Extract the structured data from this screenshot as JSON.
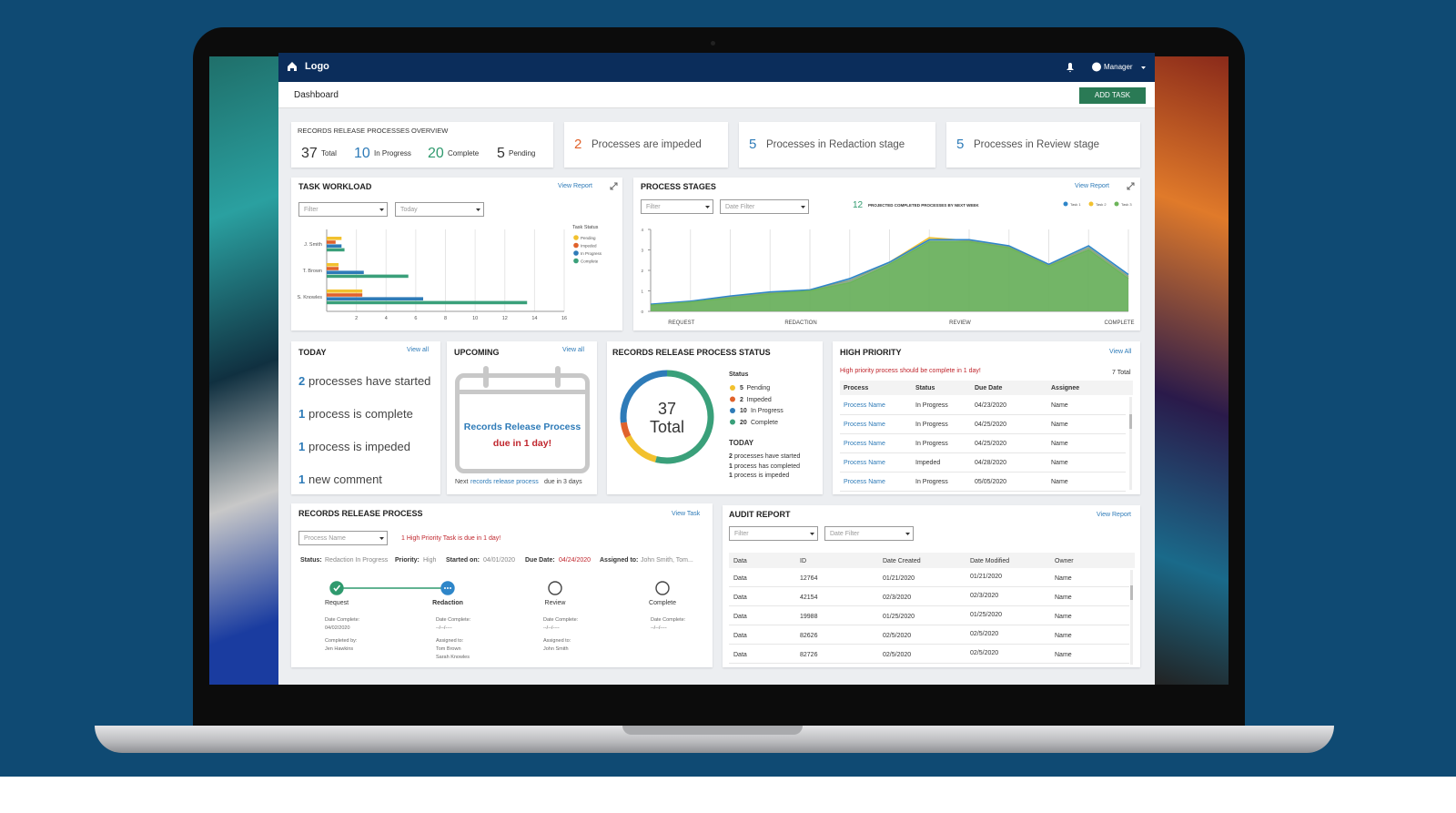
{
  "nav": {
    "logo": "Logo",
    "user": "Manager"
  },
  "header": {
    "title": "Dashboard",
    "button": "ADD TASK"
  },
  "overview": {
    "title": "RECORDS RELEASE PROCESSES OVERVIEW",
    "stats": [
      {
        "value": 37,
        "label": "Total",
        "color": "#333333"
      },
      {
        "value": 10,
        "label": "In Progress",
        "color": "#2e7bb8"
      },
      {
        "value": 20,
        "label": "Complete",
        "color": "#2f9a6e"
      },
      {
        "value": 5,
        "label": "Pending",
        "color": "#333333"
      }
    ]
  },
  "summary_cards": [
    {
      "value": 2,
      "label": "Processes are impeded",
      "color": "#e0622b"
    },
    {
      "value": 5,
      "label": "Processes in Redaction stage",
      "color": "#2e7bb8"
    },
    {
      "value": 5,
      "label": "Processes in Review stage",
      "color": "#2e7bb8"
    }
  ],
  "task_workload": {
    "title": "TASK WORKLOAD",
    "link": "View Report",
    "filters": [
      "Filter",
      "Today"
    ],
    "chart": {
      "type": "bar",
      "orientation": "horizontal",
      "legend_title": "Task Status",
      "categories": [
        "J. Smith",
        "T. Brown",
        "S. Knowles"
      ],
      "series": [
        {
          "name": "Pending",
          "color": "#f2c12e",
          "values": [
            1,
            0.8,
            2.4
          ]
        },
        {
          "name": "Impeded",
          "color": "#e0622b",
          "values": [
            0.6,
            0.8,
            2.4
          ]
        },
        {
          "name": "In Progress",
          "color": "#2e7bb8",
          "values": [
            1,
            2.5,
            6.5
          ]
        },
        {
          "name": "Complete",
          "color": "#3aa07a",
          "values": [
            1.2,
            5.5,
            13.5
          ]
        }
      ],
      "xlim": [
        0,
        16
      ],
      "xticks": [
        2,
        4,
        6,
        8,
        10,
        12,
        14,
        16
      ],
      "grid": true
    }
  },
  "process_stages": {
    "title": "PROCESS STAGES",
    "link": "View Report",
    "filters": [
      "Filter",
      "Date Filter"
    ],
    "projection": {
      "value": 12,
      "label": "PROJECTED COMPLETED PROCESSES BY NEXT WEEK"
    },
    "chart": {
      "type": "area",
      "categories": [
        null,
        "REQUEST",
        null,
        null,
        "REDACTION",
        null,
        null,
        null,
        "REVIEW",
        null,
        null,
        null,
        "COMPLETE"
      ],
      "series": [
        {
          "name": "Task 1",
          "color": "#2e86c9",
          "values": [
            0.35,
            0.5,
            0.75,
            0.95,
            1.05,
            1.6,
            2.4,
            3.5,
            3.5,
            3.2,
            2.3,
            3.2,
            1.8
          ]
        },
        {
          "name": "Task 2",
          "color": "#f2c12e",
          "values": [
            0.3,
            0.45,
            0.7,
            0.9,
            1.05,
            1.5,
            2.4,
            3.6,
            3.45,
            3.15,
            2.25,
            3.1,
            1.7
          ]
        },
        {
          "name": "Task 3",
          "color": "#6db55a",
          "values": [
            0.3,
            0.45,
            0.65,
            0.85,
            1.0,
            1.4,
            2.3,
            3.4,
            3.4,
            3.1,
            2.2,
            3.0,
            1.6
          ]
        }
      ],
      "ylim": [
        0,
        4
      ],
      "yticks": [
        0,
        1,
        2,
        3,
        4
      ],
      "grid": true
    }
  },
  "today": {
    "title": "TODAY",
    "link": "View all",
    "items": [
      {
        "count": 2,
        "text": "processes have started"
      },
      {
        "count": 1,
        "text": "process is complete"
      },
      {
        "count": 1,
        "text": "process is impeded"
      },
      {
        "count": 1,
        "text": "new comment"
      }
    ]
  },
  "upcoming": {
    "title": "UPCOMING",
    "link": "View all",
    "message": "Records Release Process",
    "due": "due in 1 day!",
    "footer": {
      "prefix": "Next",
      "link": "records release process",
      "suffix": "due in 3 days"
    }
  },
  "status": {
    "title": "RECORDS RELEASE PROCESS STATUS",
    "type": "donut",
    "total": 37,
    "total_label": "Total",
    "legend_title": "Status",
    "items": [
      {
        "value": 5,
        "label": "Pending",
        "color": "#f2c12e"
      },
      {
        "value": 2,
        "label": "Impeded",
        "color": "#e0622b"
      },
      {
        "value": 10,
        "label": "In Progress",
        "color": "#2e7bb8"
      },
      {
        "value": 20,
        "label": "Complete",
        "color": "#3aa07a"
      }
    ],
    "today_title": "TODAY",
    "today": [
      {
        "count": 2,
        "text": "processes have started"
      },
      {
        "count": 1,
        "text": "process has completed"
      },
      {
        "count": 1,
        "text": "process is impeded"
      }
    ]
  },
  "high_priority": {
    "title": "HIGH PRIORITY",
    "link": "View All",
    "alert": "High priority process should be complete in 1 day!",
    "total": "7 Total",
    "columns": [
      "Process",
      "Status",
      "Due Date",
      "Assignee"
    ],
    "rows": [
      [
        "Process Name",
        "In Progress",
        "04/23/2020",
        "Name"
      ],
      [
        "Process Name",
        "In Progress",
        "04/25/2020",
        "Name"
      ],
      [
        "Process Name",
        "In Progress",
        "04/25/2020",
        "Name"
      ],
      [
        "Process Name",
        "Impeded",
        "04/28/2020",
        "Name"
      ],
      [
        "Process Name",
        "In Progress",
        "05/05/2020",
        "Name"
      ]
    ]
  },
  "records_process": {
    "title": "RECORDS RELEASE PROCESS",
    "link": "View Task",
    "select": "Process Name",
    "alert": "1 High Priority Task is due in 1 day!",
    "meta": [
      {
        "label": "Status:",
        "value": "Redaction In Progress"
      },
      {
        "label": "Priority:",
        "value": "High"
      },
      {
        "label": "Started on:",
        "value": "04/01/2020"
      },
      {
        "label": "Due Date:",
        "value": "04/24/2020"
      },
      {
        "label": "Assigned to:",
        "value": "John Smith, Tom..."
      }
    ],
    "steps": [
      {
        "label": "Request",
        "state": "complete",
        "details": [
          "Date Complete:",
          "04/02/2020",
          "Completed by:",
          "Jen Hawkins"
        ]
      },
      {
        "label": "Redaction",
        "state": "current",
        "details": [
          "Date Complete:",
          "--/--/----",
          "Assigned to:",
          "Tom Brown",
          "Sarah Knowles"
        ]
      },
      {
        "label": "Review",
        "state": "pending",
        "details": [
          "Date Complete:",
          "--/--/----",
          "Assigned to:",
          "John Smith"
        ]
      },
      {
        "label": "Complete",
        "state": "pending",
        "details": [
          "Date Complete:",
          "--/--/----"
        ]
      }
    ]
  },
  "audit_report": {
    "title": "AUDIT REPORT",
    "link": "View Report",
    "filters": [
      "Filter",
      "Date Filter"
    ],
    "columns": [
      "Data",
      "ID",
      "Date Created",
      "Date Modified",
      "Owner"
    ],
    "rows": [
      [
        "Data",
        "12764",
        "01/21/2020",
        "01/21/2020",
        "Name"
      ],
      [
        "Data",
        "42154",
        "02/3/2020",
        "02/3/2020",
        "Name"
      ],
      [
        "Data",
        "19988",
        "01/25/2020",
        "01/25/2020",
        "Name"
      ],
      [
        "Data",
        "82626",
        "02/5/2020",
        "02/5/2020",
        "Name"
      ],
      [
        "Data",
        "82726",
        "02/5/2020",
        "02/5/2020",
        "Name"
      ]
    ]
  }
}
